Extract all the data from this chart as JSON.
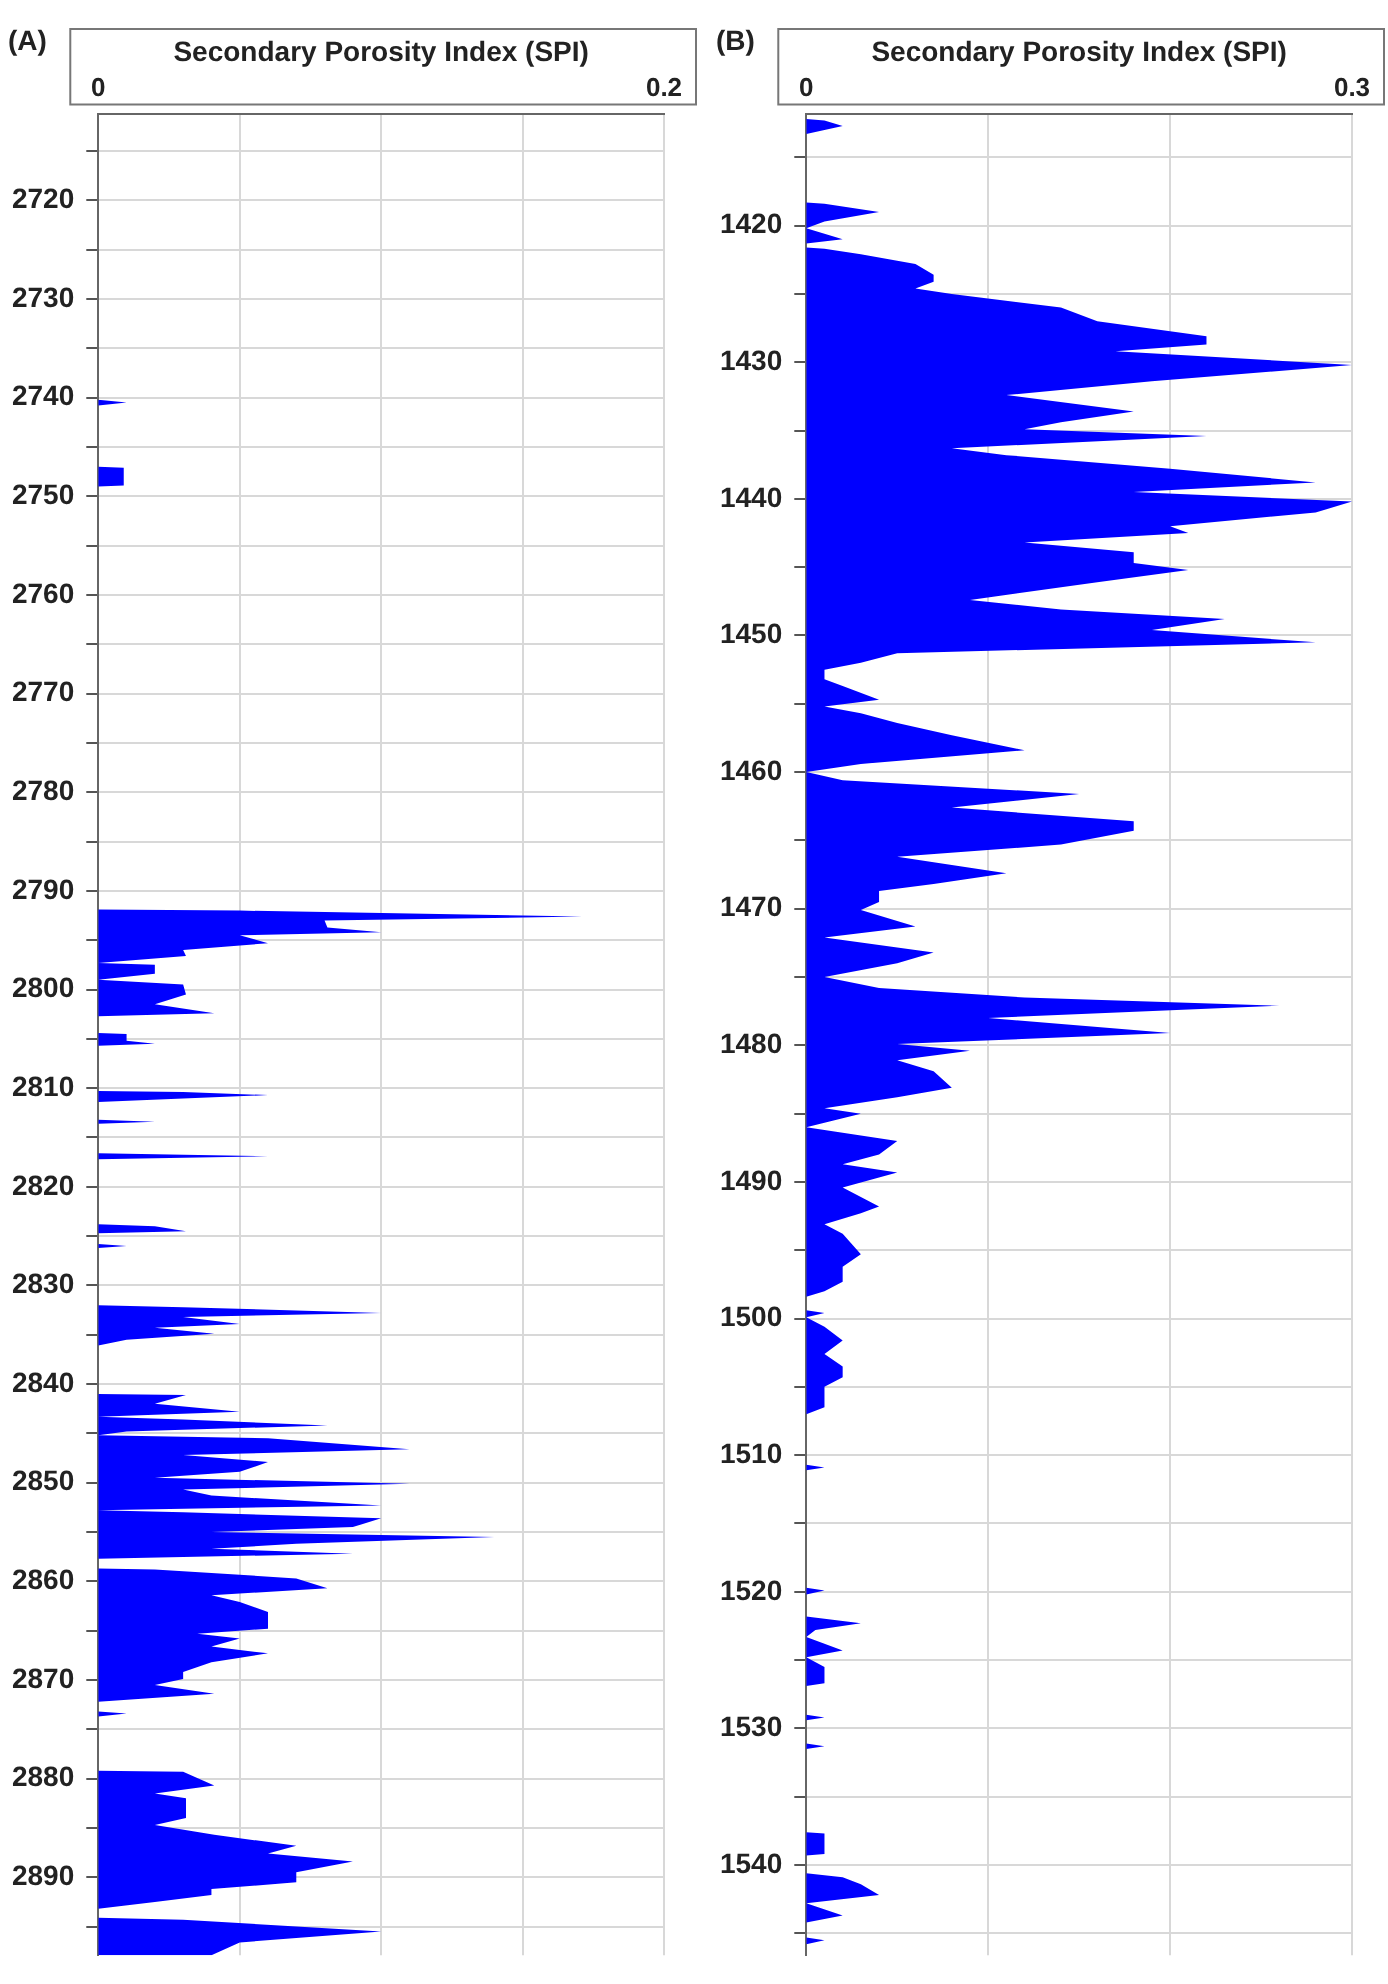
{
  "chart_data": [
    {
      "type": "area",
      "title": "(A)",
      "xlabel": "Secondary Porosity Index (SPI)",
      "orientation": "horizontal",
      "color": "#0000ff",
      "grid": true,
      "xlim": [
        0,
        0.2
      ],
      "xticks": [
        0,
        {
          "value": 0.05,
          "label": null
        },
        {
          "value": 0.1,
          "label": null
        },
        {
          "value": 0.15,
          "label": null
        },
        0.2
      ],
      "ylim": [
        2897.9,
        2711.2
      ],
      "yticks": [
        {
          "value": 2715,
          "label": null
        },
        2720,
        {
          "value": 2725,
          "label": null
        },
        2730,
        {
          "value": 2735,
          "label": null
        },
        2740,
        {
          "value": 2745,
          "label": null
        },
        2750,
        {
          "value": 2755,
          "label": null
        },
        2760,
        {
          "value": 2765,
          "label": null
        },
        2770,
        {
          "value": 2775,
          "label": null
        },
        2780,
        {
          "value": 2785,
          "label": null
        },
        2790,
        {
          "value": 2795,
          "label": null
        },
        2800,
        {
          "value": 2805,
          "label": null
        },
        2810,
        {
          "value": 2815,
          "label": null
        },
        2820,
        {
          "value": 2825,
          "label": null
        },
        2830,
        {
          "value": 2835,
          "label": null
        },
        2840,
        {
          "value": 2845,
          "label": null
        },
        2850,
        {
          "value": 2855,
          "label": null
        },
        2860,
        {
          "value": 2865,
          "label": null
        },
        2870,
        {
          "value": 2875,
          "label": null
        },
        2880,
        {
          "value": 2885,
          "label": null
        },
        2890,
        {
          "value": 2895,
          "label": null
        }
      ],
      "x": [
        2740.2,
        2740.5,
        2740.8,
        2747,
        2747.1,
        2748.9,
        2749,
        2791.9,
        2792.0,
        2792.6,
        2793.0,
        2793.7,
        2794.2,
        2794.5,
        2795.3,
        2796.0,
        2796.6,
        2797.3,
        2797.5,
        2797.8,
        2798.4,
        2799,
        2799.5,
        2800.5,
        2801.5,
        2802.4,
        2802.7,
        2804.4,
        2804.5,
        2805.2,
        2805.5,
        2805.7,
        2810.3,
        2810.4,
        2810.7,
        2811.4,
        2813.2,
        2813.4,
        2813.6,
        2816.6,
        2816.9,
        2817.2,
        2823.8,
        2824,
        2824.5,
        2824.7,
        2825.8,
        2826,
        2826.2,
        2832,
        2832.2,
        2832.8,
        2833.2,
        2833.9,
        2834.3,
        2834.9,
        2835.5,
        2836.1,
        2841,
        2841.1,
        2842,
        2842.8,
        2843.3,
        2843.6,
        2844.2,
        2844.8,
        2845.2,
        2845.5,
        2846.6,
        2847.2,
        2847.9,
        2848.9,
        2849.5,
        2850.1,
        2850.7,
        2851.3,
        2852.3,
        2852.8,
        2853.0,
        2853.6,
        2854.5,
        2855.0,
        2855.5,
        2856.2,
        2856.7,
        2857.2,
        2857.7,
        2858.7,
        2858.8,
        2859.7,
        2860.7,
        2861.4,
        2862.1,
        2863.1,
        2864.8,
        2865.3,
        2865.8,
        2866.6,
        2867.3,
        2868.2,
        2869.2,
        2869.9,
        2870.5,
        2871.4,
        2872.2,
        2873.2,
        2873.4,
        2873.7,
        2879.2,
        2879.3,
        2880.7,
        2881.5,
        2882,
        2884,
        2884.7,
        2885.7,
        2886.8,
        2887.6,
        2888.4,
        2889.5,
        2890.5,
        2891.2,
        2891.8,
        2892.5,
        2893.2,
        2894.1,
        2894.3,
        2895.5,
        2896.6,
        2897.9
      ],
      "values": [
        0,
        0.01,
        0,
        0,
        0.009,
        0.009,
        0,
        0,
        0.05,
        0.171,
        0.08,
        0.081,
        0.1,
        0.05,
        0.06,
        0.03,
        0.031,
        0,
        0.02,
        0.02,
        0.02,
        0,
        0.03,
        0.031,
        0.02,
        0.041,
        0,
        0,
        0.01,
        0.01,
        0.02,
        0,
        0,
        0.03,
        0.06,
        0,
        0,
        0.02,
        0,
        0,
        0.06,
        0,
        0,
        0.02,
        0.031,
        0,
        0,
        0.01,
        0,
        0,
        0.03,
        0.1,
        0.03,
        0.05,
        0.02,
        0.041,
        0.01,
        0,
        0,
        0.031,
        0.02,
        0.05,
        0,
        0.03,
        0.081,
        0.01,
        0,
        0.06,
        0.11,
        0.03,
        0.06,
        0.05,
        0.02,
        0.11,
        0.03,
        0.04,
        0.1,
        0,
        0.03,
        0.1,
        0.09,
        0.04,
        0.14,
        0.07,
        0.04,
        0.09,
        0,
        0,
        0.02,
        0.07,
        0.081,
        0.04,
        0.05,
        0.06,
        0.06,
        0.035,
        0.05,
        0.04,
        0.06,
        0.04,
        0.03,
        0.03,
        0.02,
        0.041,
        0,
        0,
        0.01,
        0,
        0,
        0.03,
        0.041,
        0.02,
        0.031,
        0.031,
        0.02,
        0.041,
        0.07,
        0.06,
        0.09,
        0.07,
        0.07,
        0.04,
        0.04,
        0.02,
        0,
        0,
        0.03,
        0.1,
        0.05,
        0.04
      ]
    },
    {
      "type": "area",
      "title": "(B)",
      "xlabel": "Secondary Porosity Index (SPI)",
      "orientation": "horizontal",
      "color": "#0000ff",
      "grid": true,
      "xlim": [
        0,
        0.3
      ],
      "xticks": [
        0,
        {
          "value": 0.1,
          "label": null
        },
        {
          "value": 0.2,
          "label": null
        },
        0.3
      ],
      "ylim": [
        1546.6,
        1411.8
      ],
      "yticks": [
        {
          "value": 1415,
          "label": null
        },
        1420,
        {
          "value": 1425,
          "label": null
        },
        1430,
        {
          "value": 1435,
          "label": null
        },
        1440,
        {
          "value": 1445,
          "label": null
        },
        1450,
        {
          "value": 1455,
          "label": null
        },
        1460,
        {
          "value": 1465,
          "label": null
        },
        1470,
        {
          "value": 1475,
          "label": null
        },
        1480,
        {
          "value": 1485,
          "label": null
        },
        1490,
        {
          "value": 1495,
          "label": null
        },
        1500,
        {
          "value": 1505,
          "label": null
        },
        1510,
        {
          "value": 1515,
          "label": null
        },
        1520,
        {
          "value": 1525,
          "label": null
        },
        1530,
        {
          "value": 1535,
          "label": null
        },
        1540,
        {
          "value": 1545,
          "label": null
        }
      ],
      "x": [
        1412.2,
        1412.3,
        1412.7,
        1413.3,
        1418.3,
        1418.4,
        1419.0,
        1419.7,
        1420.2,
        1420.6,
        1421.0,
        1421.3,
        1421.6,
        1421.7,
        1422.1,
        1422.8,
        1423.6,
        1424.1,
        1424.6,
        1425.0,
        1426.0,
        1427.0,
        1428.1,
        1428.7,
        1429.2,
        1430.2,
        1431.4,
        1432.4,
        1433.6,
        1434.4,
        1434.9,
        1435.4,
        1436.3,
        1436.8,
        1437.8,
        1438.8,
        1439.5,
        1440.2,
        1441.0,
        1442.0,
        1442.5,
        1443.2,
        1443.9,
        1444.7,
        1445.2,
        1446.1,
        1447.4,
        1448.1,
        1448.8,
        1449.6,
        1450.5,
        1451.3,
        1452.0,
        1452.5,
        1453.2,
        1453.7,
        1454.7,
        1455.2,
        1455.7,
        1456.4,
        1457.3,
        1458.4,
        1459.4,
        1460.0,
        1460.6,
        1461.6,
        1462.6,
        1463.6,
        1464.3,
        1465.3,
        1466.2,
        1467.4,
        1468.2,
        1468.7,
        1469.5,
        1470.1,
        1471.3,
        1472.1,
        1473.2,
        1474.0,
        1475.0,
        1475.8,
        1476.5,
        1477.1,
        1478.0,
        1479.1,
        1479.9,
        1480.4,
        1481.1,
        1481.9,
        1483.1,
        1483.8,
        1484.6,
        1485.0,
        1486.0,
        1487.0,
        1488.0,
        1488.7,
        1489.3,
        1490.4,
        1491.8,
        1492.3,
        1493.1,
        1493.8,
        1495.3,
        1496.2,
        1497.3,
        1498.0,
        1498.4,
        1499.4,
        1499.6,
        1499.9,
        1500.6,
        1501.6,
        1502.6,
        1503.5,
        1504.3,
        1505.0,
        1506.5,
        1507,
        1510.7,
        1510.9,
        1511.1,
        1519.7,
        1519.9,
        1520.2,
        1521.8,
        1522.3,
        1522.8,
        1523.3,
        1523.8,
        1524.3,
        1524.8,
        1525.5,
        1526.7,
        1526.9,
        1529.0,
        1529.2,
        1529.4,
        1531.1,
        1531.3,
        1531.5,
        1537.6,
        1537.7,
        1539.2,
        1539.3,
        1540.6,
        1540.9,
        1541.4,
        1542.2,
        1542.8,
        1543.7,
        1544.2,
        1545.3,
        1545.5,
        1545.8
      ],
      "values": [
        0,
        0.01,
        0.02,
        0,
        0,
        0.01,
        0.04,
        0.01,
        0,
        0.01,
        0.02,
        0,
        0,
        0.01,
        0.03,
        0.06,
        0.07,
        0.07,
        0.06,
        0.08,
        0.14,
        0.16,
        0.22,
        0.22,
        0.17,
        0.3,
        0.19,
        0.11,
        0.18,
        0.14,
        0.12,
        0.22,
        0.08,
        0.11,
        0.2,
        0.28,
        0.18,
        0.3,
        0.28,
        0.2,
        0.21,
        0.12,
        0.18,
        0.18,
        0.21,
        0.16,
        0.09,
        0.14,
        0.23,
        0.19,
        0.28,
        0.05,
        0.03,
        0.01,
        0.01,
        0.02,
        0.04,
        0.01,
        0.03,
        0.05,
        0.08,
        0.12,
        0.03,
        0,
        0.02,
        0.15,
        0.08,
        0.18,
        0.18,
        0.14,
        0.05,
        0.11,
        0.07,
        0.04,
        0.04,
        0.03,
        0.06,
        0.01,
        0.07,
        0.05,
        0.01,
        0.04,
        0.12,
        0.26,
        0.1,
        0.2,
        0.05,
        0.09,
        0.05,
        0.07,
        0.08,
        0.05,
        0.01,
        0.03,
        0,
        0.05,
        0.04,
        0.02,
        0.05,
        0.02,
        0.04,
        0.03,
        0.01,
        0.02,
        0.03,
        0.02,
        0.02,
        0.01,
        0,
        0,
        0.01,
        0,
        0.01,
        0.02,
        0.01,
        0.02,
        0.02,
        0.01,
        0.01,
        0,
        0,
        0.01,
        0,
        0,
        0.01,
        0,
        0,
        0.03,
        0.005,
        0,
        0.01,
        0.02,
        0,
        0.01,
        0.01,
        0,
        0,
        0.01,
        0,
        0,
        0.01,
        0,
        0,
        0.01,
        0.01,
        0,
        0,
        0.02,
        0.03,
        0.04,
        0,
        0.02,
        0,
        0,
        0.01,
        0
      ]
    }
  ]
}
